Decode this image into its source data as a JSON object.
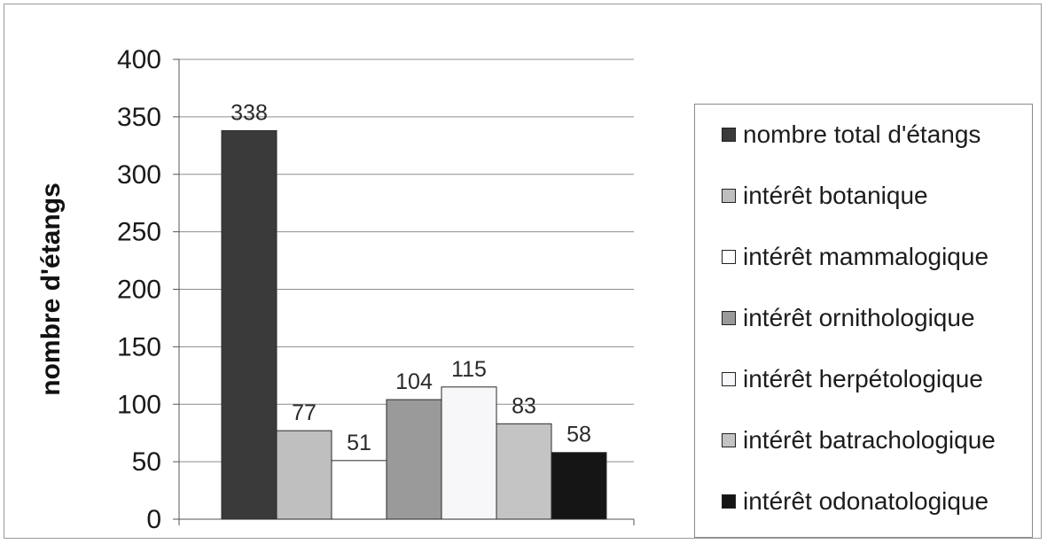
{
  "chart_data": {
    "type": "bar",
    "title": "",
    "xlabel": "",
    "ylabel": "nombre d'étangs",
    "ylim": [
      0,
      400
    ],
    "yticks": [
      0,
      50,
      100,
      150,
      200,
      250,
      300,
      350,
      400
    ],
    "grid": true,
    "legend_position": "right",
    "series": [
      {
        "name": "nombre total d'étangs",
        "values": [
          338
        ],
        "color": "#3a3a3a"
      },
      {
        "name": "intérêt botanique",
        "values": [
          77
        ],
        "color": "#bfbfbf"
      },
      {
        "name": "intérêt mammalogique",
        "values": [
          51
        ],
        "color": "#ffffff"
      },
      {
        "name": "intérêt ornithologique",
        "values": [
          104
        ],
        "color": "#9a9a9a"
      },
      {
        "name": "intérêt herpétologique",
        "values": [
          115
        ],
        "color": "#f7f7fa"
      },
      {
        "name": "intérêt batrachologique",
        "values": [
          83
        ],
        "color": "#c4c4c4"
      },
      {
        "name": "intérêt odonatologique",
        "values": [
          58
        ],
        "color": "#151515"
      }
    ],
    "data_labels": [
      "338",
      "77",
      "51",
      "104",
      "115",
      "83",
      "58"
    ]
  }
}
